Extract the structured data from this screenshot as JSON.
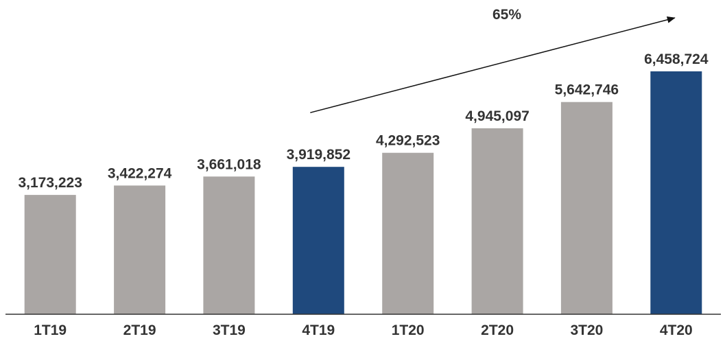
{
  "chart_data": {
    "type": "bar",
    "categories": [
      "1T19",
      "2T19",
      "3T19",
      "4T19",
      "1T20",
      "2T20",
      "3T20",
      "4T20"
    ],
    "values": [
      3173223,
      3422274,
      3661018,
      3919852,
      4292523,
      4945097,
      5642746,
      6458724
    ],
    "data_labels": [
      "3,173,223",
      "3,422,274",
      "3,661,018",
      "3,919,852",
      "4,292,523",
      "4,945,097",
      "5,642,746",
      "6,458,724"
    ],
    "highlighted_categories": [
      "4T19",
      "4T20"
    ],
    "title": "",
    "xlabel": "",
    "ylabel": "",
    "ylim": [
      0,
      6458724
    ],
    "grid": false,
    "legend": "none",
    "annotation": {
      "text": "65%",
      "type": "arrow",
      "from_category": "4T19",
      "to_category": "4T20"
    },
    "colors": {
      "bar_default": "#aaa6a4",
      "bar_highlight": "#1f497d",
      "text": "#333333",
      "axis": "#333333"
    }
  }
}
